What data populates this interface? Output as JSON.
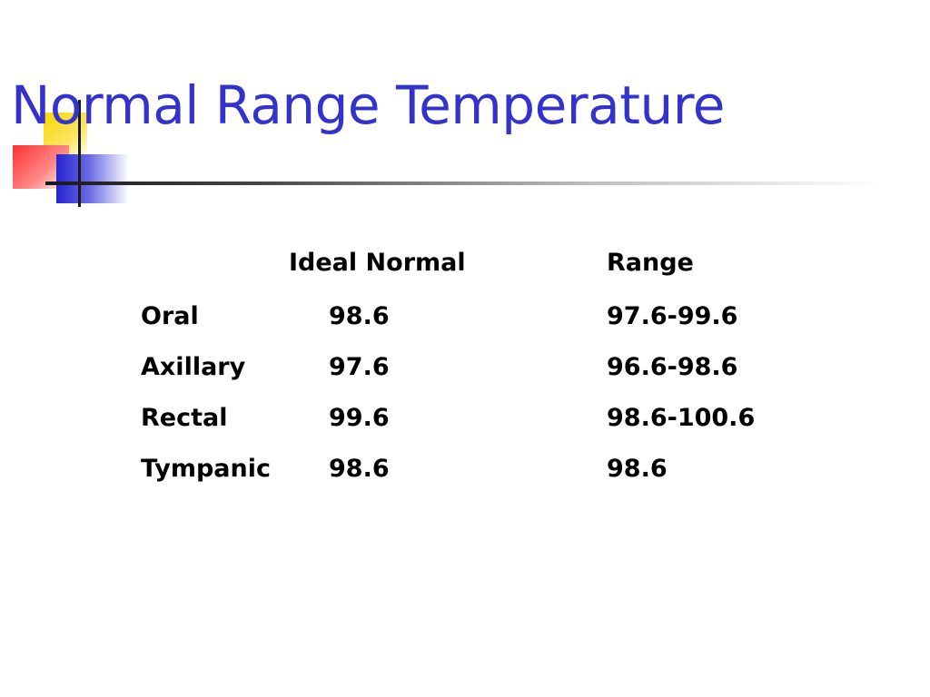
{
  "slide": {
    "title": "Normal Range Temperature",
    "accent_color": "#3333cc",
    "logo_colors": [
      "#f9d800",
      "#ff3030",
      "#2424d0"
    ]
  },
  "table": {
    "headers": {
      "ideal": "Ideal Normal",
      "range": "Range"
    },
    "rows": [
      {
        "site": "Oral",
        "ideal": "98.6",
        "range": "97.6-99.6"
      },
      {
        "site": "Axillary",
        "ideal": "97.6",
        "range": "96.6-98.6"
      },
      {
        "site": "Rectal",
        "ideal": "99.6",
        "range": "98.6-100.6"
      },
      {
        "site": "Tympanic",
        "ideal": "98.6",
        "range": "98.6"
      }
    ]
  }
}
